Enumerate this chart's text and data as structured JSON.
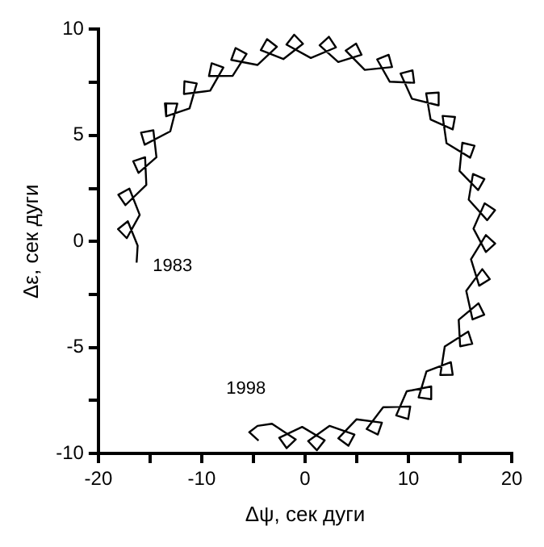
{
  "chart_data": {
    "type": "line",
    "xlabel": "Δψ, сек дуги",
    "ylabel": "Δε, сек дуги",
    "xlim": [
      -20,
      20
    ],
    "ylim": [
      -10,
      10
    ],
    "xticks": [
      -20,
      {
        "value": -15,
        "label": null
      },
      -10,
      {
        "value": -5,
        "label": null
      },
      0,
      {
        "value": 5,
        "label": null
      },
      10,
      {
        "value": 15,
        "label": null
      },
      20
    ],
    "yticks": [
      -10,
      {
        "value": -7.5,
        "label": null
      },
      -5,
      {
        "value": -2.5,
        "label": null
      },
      0,
      {
        "value": 2.5,
        "label": null
      },
      5,
      {
        "value": 7.5,
        "label": null
      },
      10
    ],
    "grid": false,
    "marker": "none",
    "line_style": "solid",
    "annotations": [
      "1983",
      "1998"
    ],
    "series": [
      {
        "color": "#000000",
        "x": [
          -16.3,
          -16.2,
          -17.15,
          -18.1,
          -17.25,
          -16.0,
          -17.0,
          -18.07,
          -17.38,
          -15.36,
          -15.48,
          -16.63,
          -16.12,
          -14.38,
          -14.68,
          -15.87,
          -15.52,
          -13.04,
          -12.36,
          -13.56,
          -13.44,
          -11.18,
          -10.48,
          -11.67,
          -11.72,
          -9.18,
          -7.9,
          -9.04,
          -9.3,
          -7.0,
          -5.66,
          -6.72,
          -7.14,
          -4.61,
          -2.72,
          -3.68,
          -4.28,
          -2.1,
          -0.2,
          -1.05,
          -1.8,
          0.56,
          2.99,
          2.31,
          1.41,
          3.21,
          5.47,
          4.94,
          3.93,
          5.78,
          8.42,
          8.09,
          6.98,
          8.2,
          10.56,
          10.4,
          9.24,
          10.34,
          12.88,
          12.93,
          11.72,
          12.15,
          14.29,
          14.51,
          13.31,
          13.69,
          15.98,
          16.4,
          15.22,
          14.95,
          16.75,
          17.36,
          16.25,
          15.84,
          17.62,
          18.39,
          17.38,
          16.3,
          17.5,
          18.4,
          17.5,
          16.06,
          16.85,
          17.88,
          17.15,
          15.6,
          16.21,
          17.34,
          16.79,
          14.87,
          15.01,
          16.18,
          15.79,
          13.52,
          13.09,
          14.29,
          14.11,
          11.75,
          10.99,
          12.19,
          12.21,
          9.84,
          8.82,
          9.98,
          10.18,
          7.56,
          5.96,
          7.04,
          7.44,
          4.99,
          3.22,
          4.2,
          4.78,
          2.38,
          0.3,
          1.15,
          1.9,
          -0.28,
          -2.5,
          -1.78,
          -0.9,
          -3.2,
          -4.6,
          -5.4,
          -4.5
        ],
        "values": [
          -1.0,
          -0.2,
          0.95,
          0.58,
          0.15,
          1.25,
          2.49,
          2.2,
          1.71,
          2.67,
          3.97,
          3.78,
          3.23,
          3.97,
          5.24,
          5.13,
          4.56,
          5.19,
          6.5,
          6.51,
          5.9,
          6.27,
          7.45,
          7.55,
          6.95,
          7.11,
          8.2,
          8.4,
          7.8,
          7.81,
          8.84,
          9.12,
          8.56,
          8.32,
          9.18,
          9.54,
          9.02,
          8.6,
          9.32,
          9.75,
          9.28,
          8.65,
          9.15,
          9.65,
          9.25,
          8.46,
          8.8,
          9.33,
          9.0,
          8.09,
          8.22,
          8.8,
          8.58,
          7.53,
          7.48,
          8.07,
          7.92,
          6.73,
          6.42,
          7.02,
          6.98,
          5.75,
          5.28,
          5.87,
          5.92,
          4.63,
          3.95,
          4.51,
          4.65,
          3.32,
          2.42,
          2.94,
          3.18,
          1.97,
          1.0,
          1.47,
          1.8,
          0.6,
          -0.5,
          -0.1,
          0.3,
          -0.84,
          -2.09,
          -1.78,
          -1.31,
          -2.33,
          -3.68,
          -3.46,
          -2.92,
          -3.7,
          -4.95,
          -4.83,
          -4.25,
          -4.96,
          -6.3,
          -6.29,
          -5.7,
          -6.13,
          -7.36,
          -7.44,
          -6.84,
          -7.07,
          -8.21,
          -8.38,
          -7.79,
          -7.82,
          -8.85,
          -9.11,
          -8.55,
          -8.39,
          -9.29,
          -9.64,
          -9.11,
          -8.7,
          -9.42,
          -9.85,
          -9.38,
          -8.75,
          -9.26,
          -9.75,
          -9.34,
          -8.6,
          -8.7,
          -9.0,
          -9.4
        ]
      }
    ]
  }
}
